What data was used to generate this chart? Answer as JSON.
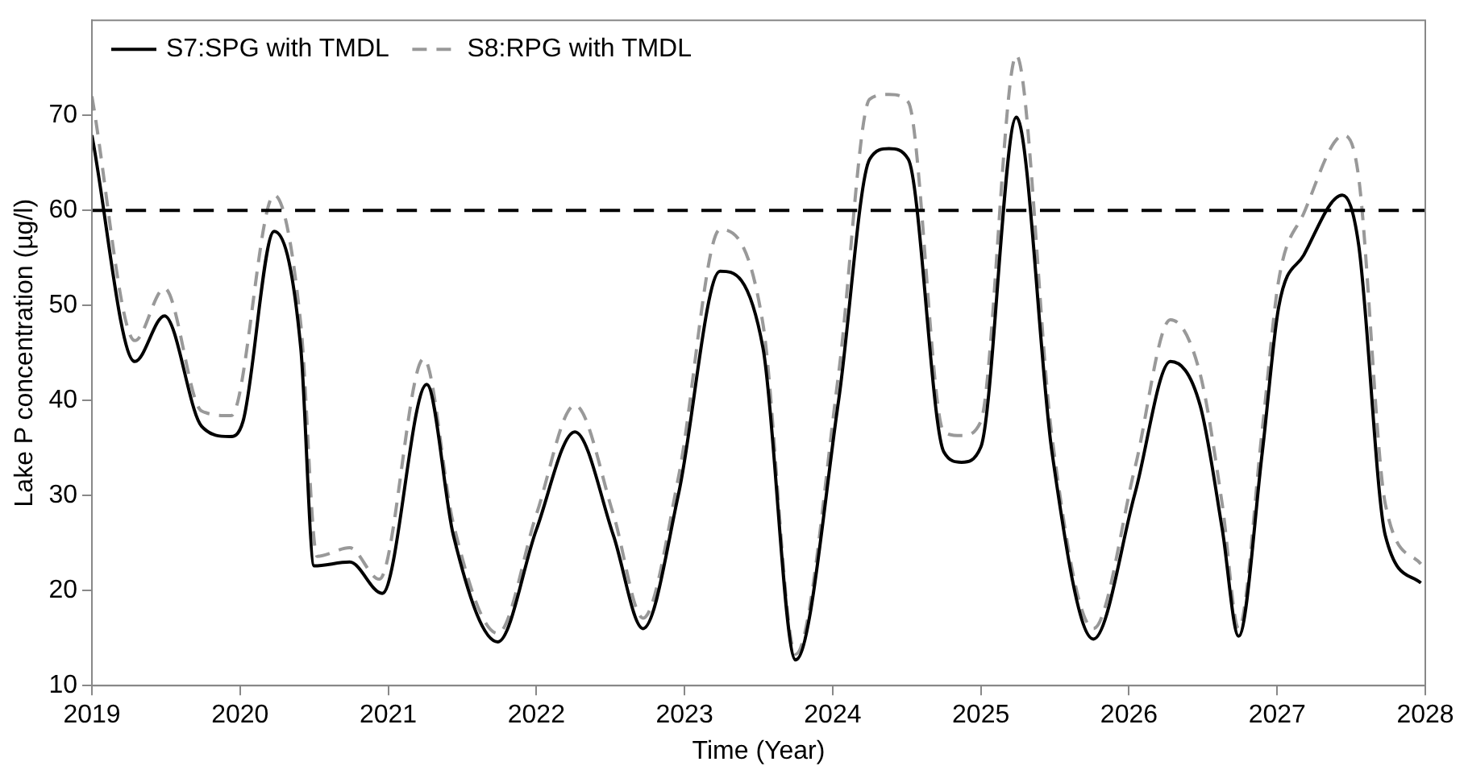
{
  "chart_data": {
    "type": "line",
    "xlabel": "Time (Year)",
    "ylabel": "Lake P concentration (µg/l)",
    "xlim": [
      2019,
      2028
    ],
    "xticks": [
      2019,
      2020,
      2021,
      2022,
      2023,
      2024,
      2025,
      2026,
      2027,
      2028
    ],
    "ylim": [
      10,
      80
    ],
    "yticks": [
      10,
      20,
      30,
      40,
      50,
      60,
      70
    ],
    "grid": false,
    "legend": "top left",
    "marker": "none",
    "ref_lines": [
      {
        "axis": "y",
        "value": 60,
        "color": "#000000",
        "line_style": "dashed"
      }
    ],
    "series": [
      {
        "name": "S7:SPG with TMDL",
        "color": "#000000",
        "line_style": "solid",
        "x": [
          2019.0,
          2019.29,
          2019.49,
          2019.74,
          2019.93,
          2020.02,
          2020.23,
          2020.41,
          2020.5,
          2020.74,
          2020.96,
          2021.26,
          2021.44,
          2021.74,
          2022.0,
          2022.26,
          2022.52,
          2022.72,
          2022.96,
          2023.24,
          2023.53,
          2023.75,
          2024.04,
          2024.25,
          2024.38,
          2024.51,
          2024.75,
          2024.87,
          2025.0,
          2025.24,
          2025.48,
          2025.76,
          2026.04,
          2026.28,
          2026.48,
          2026.63,
          2026.74,
          2026.9,
          2027.01,
          2027.18,
          2027.44,
          2027.55,
          2027.73,
          2027.97
        ],
        "values": [
          67.9,
          44.1,
          48.9,
          37.3,
          36.2,
          37.8,
          57.8,
          45.5,
          22.6,
          23.0,
          19.7,
          41.7,
          25.8,
          14.6,
          26.4,
          36.7,
          25.8,
          16.0,
          30.2,
          53.6,
          45.5,
          12.7,
          40.0,
          65.4,
          66.5,
          65.4,
          34.6,
          33.5,
          35.1,
          69.8,
          34.6,
          14.9,
          30.2,
          44.1,
          39.5,
          26.4,
          15.2,
          34.6,
          49.8,
          55.3,
          61.6,
          56.4,
          25.8,
          20.8
        ]
      },
      {
        "name": "S8:RPG with TMDL",
        "color": "#999999",
        "line_style": "dashed",
        "x": [
          2019.0,
          2019.29,
          2019.49,
          2019.74,
          2019.94,
          2020.23,
          2020.41,
          2020.52,
          2020.74,
          2020.94,
          2021.24,
          2021.44,
          2021.74,
          2022.0,
          2022.26,
          2022.52,
          2022.72,
          2022.96,
          2023.24,
          2023.53,
          2023.75,
          2024.04,
          2024.25,
          2024.38,
          2024.51,
          2024.75,
          2024.87,
          2025.0,
          2025.24,
          2025.48,
          2025.76,
          2026.04,
          2026.28,
          2026.48,
          2026.63,
          2026.74,
          2026.9,
          2027.01,
          2027.18,
          2027.45,
          2027.55,
          2027.73,
          2027.97
        ],
        "values": [
          72.0,
          46.3,
          51.8,
          38.9,
          38.4,
          61.6,
          48.0,
          23.6,
          24.5,
          21.2,
          44.4,
          27.0,
          15.5,
          28.0,
          39.5,
          28.0,
          17.1,
          32.0,
          58.0,
          48.0,
          13.3,
          42.8,
          71.7,
          72.2,
          71.4,
          36.7,
          36.3,
          37.8,
          76.3,
          36.2,
          16.0,
          32.9,
          48.5,
          42.8,
          29.0,
          16.0,
          37.0,
          52.6,
          59.7,
          67.9,
          63.5,
          29.1,
          22.8
        ]
      }
    ]
  }
}
